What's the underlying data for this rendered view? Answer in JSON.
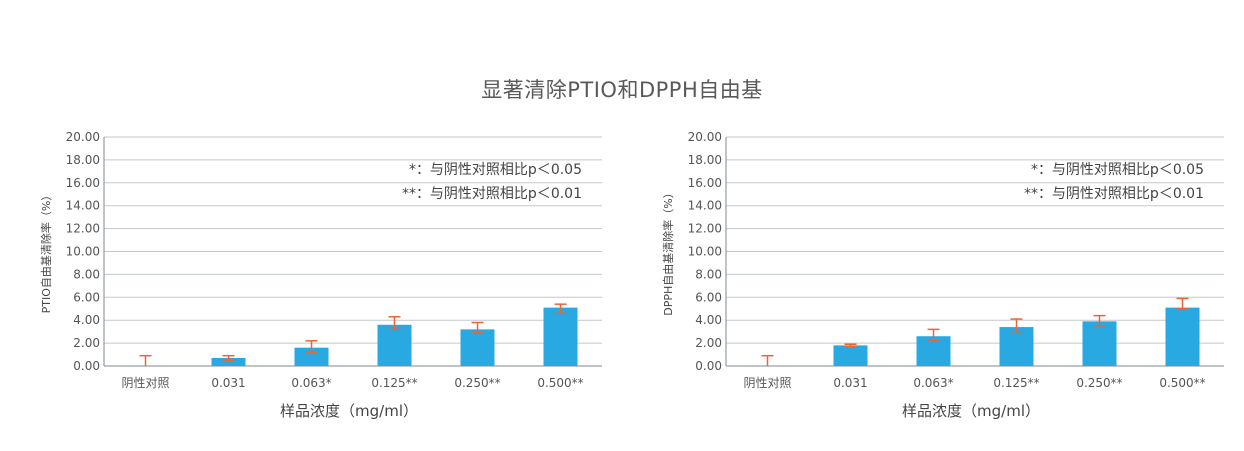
{
  "title": "显著清除PTIO和DPPH自由基",
  "colors": {
    "bar": "#29a9e1",
    "error": "#e8653a",
    "grid": "#c3c8cc"
  },
  "chart_data": [
    {
      "type": "bar",
      "title": "",
      "ylabel": "PTIO自由基清除率（%）",
      "xlabel": "样品浓度（mg/ml）",
      "ylim": [
        0,
        20
      ],
      "yticks": [
        "0.00",
        "2.00",
        "4.00",
        "6.00",
        "8.00",
        "10.00",
        "12.00",
        "14.00",
        "16.00",
        "18.00",
        "20.00"
      ],
      "categories": [
        "阴性对照",
        "0.031",
        "0.063*",
        "0.125**",
        "0.250**",
        "0.500**"
      ],
      "values": [
        0,
        0.7,
        1.6,
        3.6,
        3.2,
        5.1
      ],
      "error_high": [
        0.9,
        0.9,
        2.2,
        4.3,
        3.8,
        5.4
      ],
      "error_low": [
        0,
        0.5,
        1.2,
        3.2,
        2.9,
        4.6
      ],
      "notes": [
        "*：与阴性对照相比p＜0.05",
        "**：与阴性对照相比p＜0.01"
      ],
      "grid": true
    },
    {
      "type": "bar",
      "title": "",
      "ylabel": "DPPH自由基清除率（%）",
      "xlabel": "样品浓度（mg/ml）",
      "ylim": [
        0,
        20
      ],
      "yticks": [
        "0.00",
        "2.00",
        "4.00",
        "6.00",
        "8.00",
        "10.00",
        "12.00",
        "14.00",
        "16.00",
        "18.00",
        "20.00"
      ],
      "categories": [
        "阴性对照",
        "0.031",
        "0.063*",
        "0.125**",
        "0.250**",
        "0.500**"
      ],
      "values": [
        0,
        1.8,
        2.6,
        3.4,
        3.9,
        5.1
      ],
      "error_high": [
        0.9,
        1.9,
        3.2,
        4.1,
        4.4,
        5.9
      ],
      "error_low": [
        0,
        1.7,
        2.2,
        3.0,
        3.5,
        5.0
      ],
      "notes": [
        "*：与阴性对照相比p＜0.05",
        "**：与阴性对照相比p＜0.01"
      ],
      "grid": true
    }
  ]
}
